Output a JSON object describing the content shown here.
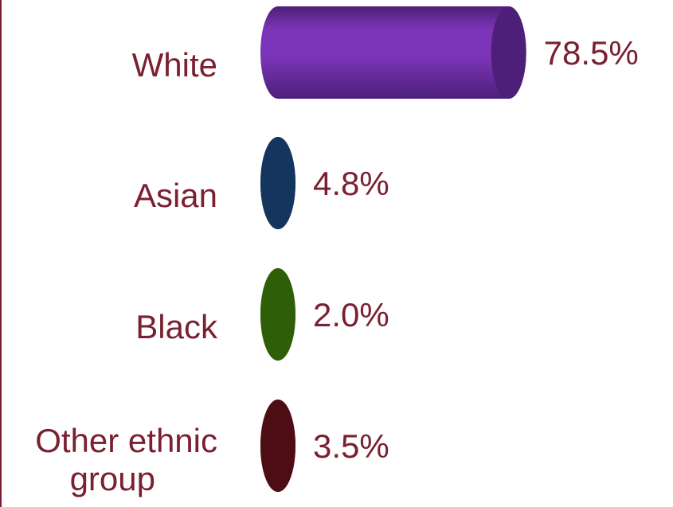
{
  "chart_data": {
    "type": "bar",
    "orientation": "horizontal",
    "style": "3d-cylinder",
    "categories": [
      [
        "White"
      ],
      [
        "Asian"
      ],
      [
        "Black"
      ],
      [
        "Other ethnic",
        "group"
      ]
    ],
    "values": [
      78.5,
      4.8,
      2.0,
      3.5
    ],
    "value_labels": [
      "78.5%",
      "4.8%",
      "2.0%",
      "3.5%"
    ],
    "colors": [
      "#7b35b8",
      "#1f4f8f",
      "#4a8f10",
      "#7a1420"
    ],
    "end_colors": [
      "#4e1f78",
      "#13355e",
      "#2f5e08",
      "#4e0c14"
    ],
    "xlim": [
      0,
      80
    ],
    "grid": false,
    "legend": "none",
    "title": "",
    "xlabel": "",
    "ylabel": ""
  },
  "text_color": "#7a2030"
}
